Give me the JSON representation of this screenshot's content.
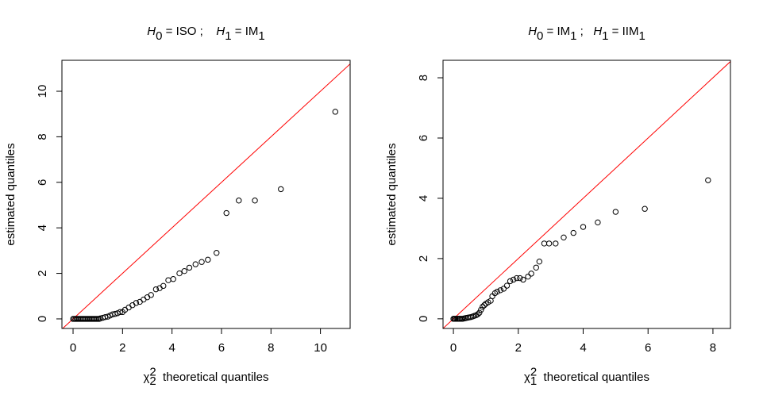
{
  "chart_data": [
    {
      "type": "scatter",
      "title": [
        {
          "text": "H",
          "italic": true
        },
        {
          "text": "0",
          "script": "sub"
        },
        {
          "text": " = ISO ;    "
        },
        {
          "text": "H",
          "italic": true
        },
        {
          "text": "1",
          "script": "sub"
        },
        {
          "text": " = IM"
        },
        {
          "text": "1",
          "script": "sub"
        }
      ],
      "xlabel": [
        {
          "text": "χ"
        },
        {
          "text": "2",
          "script": "sup"
        },
        {
          "text": "2",
          "script": "sub",
          "stacked": true
        },
        {
          "text": "  theoretical quantiles"
        }
      ],
      "ylabel": "estimated quantiles",
      "xlim": [
        -0.45,
        11.2
      ],
      "ylim": [
        -0.42,
        11.36
      ],
      "xticks": [
        0,
        2,
        4,
        6,
        8,
        10
      ],
      "yticks": [
        0,
        2,
        4,
        6,
        8,
        10
      ],
      "reference_line": {
        "intercept": 0,
        "slope": 1,
        "color": "#ff0000"
      },
      "color": "#000000",
      "x": [
        0.0,
        0.05,
        0.1,
        0.15,
        0.2,
        0.25,
        0.3,
        0.35,
        0.4,
        0.45,
        0.5,
        0.55,
        0.6,
        0.65,
        0.7,
        0.75,
        0.8,
        0.85,
        0.9,
        0.95,
        1.0,
        1.05,
        1.1,
        1.2,
        1.3,
        1.4,
        1.5,
        1.6,
        1.7,
        1.8,
        1.9,
        2.0,
        2.1,
        2.25,
        2.4,
        2.55,
        2.7,
        2.85,
        3.0,
        3.15,
        3.35,
        3.5,
        3.65,
        3.85,
        4.05,
        4.3,
        4.5,
        4.7,
        4.95,
        5.2,
        5.45,
        5.8,
        6.2,
        6.7,
        7.35,
        8.4,
        10.6
      ],
      "values": [
        0,
        0,
        0,
        0,
        0,
        0,
        0,
        0,
        0,
        0,
        0,
        0,
        0,
        0,
        0,
        0,
        0,
        0,
        0,
        0,
        0,
        0,
        0.02,
        0.05,
        0.08,
        0.1,
        0.15,
        0.2,
        0.22,
        0.25,
        0.3,
        0.3,
        0.4,
        0.5,
        0.6,
        0.7,
        0.75,
        0.85,
        0.95,
        1.05,
        1.3,
        1.35,
        1.45,
        1.7,
        1.75,
        2.0,
        2.1,
        2.25,
        2.4,
        2.5,
        2.6,
        2.9,
        4.65,
        5.2,
        5.2,
        5.7,
        9.1
      ]
    },
    {
      "type": "scatter",
      "title": [
        {
          "text": "H",
          "italic": true
        },
        {
          "text": "0",
          "script": "sub"
        },
        {
          "text": " = IM"
        },
        {
          "text": "1",
          "script": "sub"
        },
        {
          "text": " ;   "
        },
        {
          "text": "H",
          "italic": true
        },
        {
          "text": "1",
          "script": "sub"
        },
        {
          "text": " = IIM"
        },
        {
          "text": "1",
          "script": "sub"
        }
      ],
      "xlabel": [
        {
          "text": "χ"
        },
        {
          "text": "2",
          "script": "sup"
        },
        {
          "text": "1",
          "script": "sub",
          "stacked": true
        },
        {
          "text": "  theoretical quantiles"
        }
      ],
      "ylabel": "estimated quantiles",
      "xlim": [
        -0.32,
        8.54
      ],
      "ylim": [
        -0.32,
        8.58
      ],
      "xticks": [
        0,
        2,
        4,
        6,
        8
      ],
      "yticks": [
        0,
        2,
        4,
        6,
        8
      ],
      "reference_line": {
        "intercept": 0,
        "slope": 1,
        "color": "#ff0000"
      },
      "color": "#000000",
      "x": [
        0,
        0.03,
        0.06,
        0.1,
        0.13,
        0.17,
        0.2,
        0.24,
        0.28,
        0.32,
        0.36,
        0.4,
        0.45,
        0.5,
        0.55,
        0.6,
        0.65,
        0.7,
        0.75,
        0.8,
        0.85,
        0.9,
        0.95,
        1.0,
        1.07,
        1.15,
        1.2,
        1.28,
        1.35,
        1.45,
        1.55,
        1.65,
        1.75,
        1.85,
        1.95,
        2.05,
        2.15,
        2.3,
        2.4,
        2.55,
        2.65,
        2.8,
        2.95,
        3.15,
        3.4,
        3.7,
        4.0,
        4.45,
        5.0,
        5.9,
        7.85
      ],
      "values": [
        0,
        0,
        0,
        0,
        0,
        0,
        0,
        0,
        0,
        0.01,
        0.02,
        0.03,
        0.04,
        0.05,
        0.06,
        0.08,
        0.1,
        0.12,
        0.15,
        0.2,
        0.3,
        0.4,
        0.45,
        0.5,
        0.55,
        0.6,
        0.75,
        0.85,
        0.9,
        0.95,
        1.0,
        1.1,
        1.25,
        1.3,
        1.35,
        1.35,
        1.3,
        1.4,
        1.5,
        1.7,
        1.9,
        2.5,
        2.5,
        2.5,
        2.7,
        2.85,
        3.05,
        3.2,
        3.55,
        3.65,
        4.6
      ]
    }
  ]
}
